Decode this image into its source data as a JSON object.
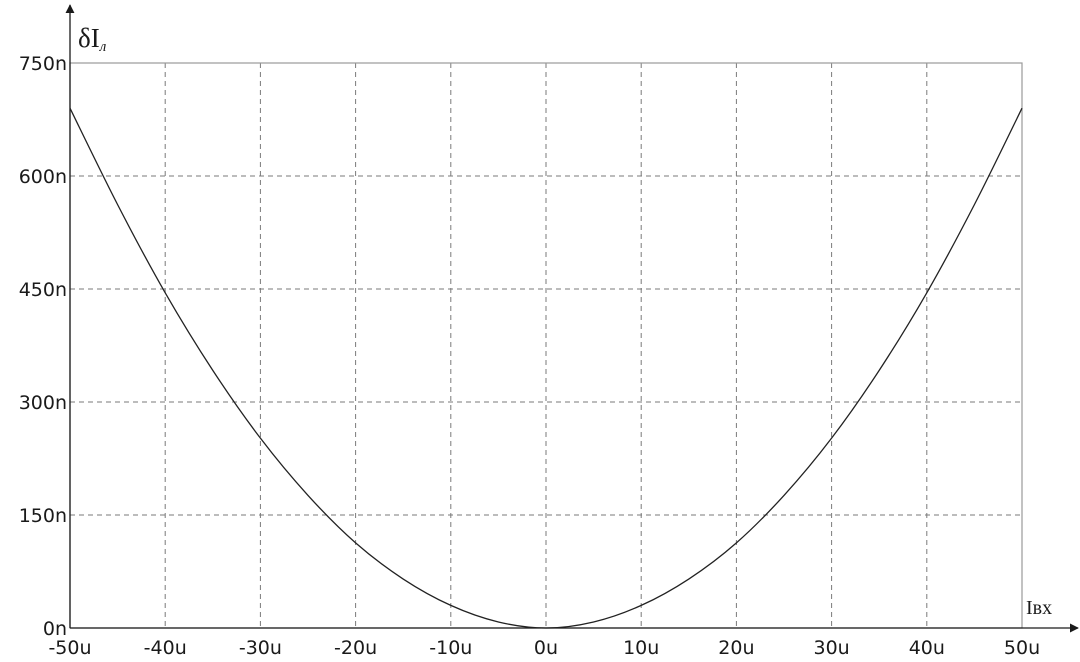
{
  "chart_data": {
    "type": "line",
    "title": "",
    "xlabel": "Iвх",
    "ylabel_symbol": "δI",
    "ylabel_subscript": "л",
    "xlim": [
      -50,
      50
    ],
    "ylim": [
      0,
      750
    ],
    "grid": true,
    "x_ticks": [
      -50,
      -40,
      -30,
      -20,
      -10,
      0,
      10,
      20,
      30,
      40,
      50
    ],
    "x_tick_labels": [
      "-50u",
      "-40u",
      "-30u",
      "-20u",
      "-10u",
      "0u",
      "10u",
      "20u",
      "30u",
      "40u",
      "50u"
    ],
    "y_ticks": [
      0,
      150,
      300,
      450,
      600,
      750
    ],
    "y_tick_labels": [
      "0n",
      "150n",
      "300n",
      "450n",
      "600n",
      "750n"
    ],
    "series": [
      {
        "color": "#222222",
        "x": [
          -50,
          -45,
          -40,
          -35,
          -30,
          -25,
          -20,
          -15,
          -10,
          -5,
          0,
          5,
          10,
          15,
          20,
          25,
          30,
          35,
          40,
          45,
          50
        ],
        "values": [
          690,
          562,
          445,
          342,
          252,
          176,
          113,
          65,
          30,
          8,
          0,
          8,
          30,
          65,
          113,
          176,
          252,
          342,
          445,
          562,
          690
        ]
      }
    ]
  }
}
